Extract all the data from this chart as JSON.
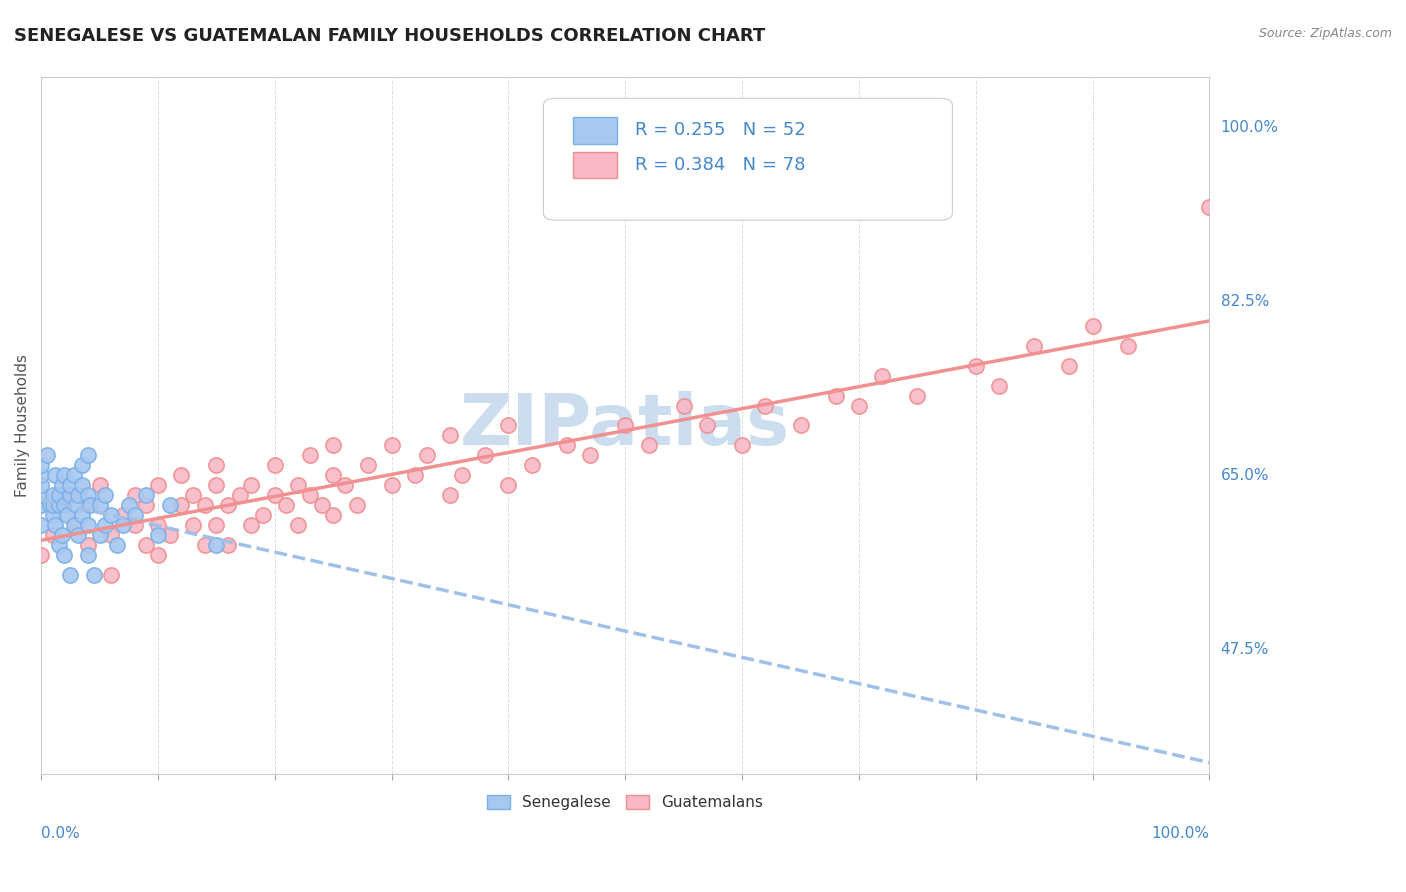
{
  "title": "SENEGALESE VS GUATEMALAN FAMILY HOUSEHOLDS CORRELATION CHART",
  "source": "Source: ZipAtlas.com",
  "ylabel": "Family Households",
  "right_yticks": [
    "47.5%",
    "65.0%",
    "82.5%",
    "100.0%"
  ],
  "right_ytick_vals": [
    0.475,
    0.65,
    0.825,
    1.0
  ],
  "senegalese_R": 0.255,
  "senegalese_N": 52,
  "guatemalan_R": 0.384,
  "guatemalan_N": 78,
  "senegalese_color": "#a8c8f0",
  "guatemalan_color": "#f8b8c8",
  "senegalese_edge_color": "#7ab0e8",
  "guatemalan_edge_color": "#f09090",
  "senegalese_line_color": "#a0c0e8",
  "guatemalan_line_color": "#f09090",
  "watermark_color": "#ccddf0",
  "senegalese_x": [
    0.0,
    0.0,
    0.0,
    0.0,
    0.0,
    0.0,
    0.005,
    0.008,
    0.01,
    0.01,
    0.01,
    0.012,
    0.012,
    0.015,
    0.015,
    0.015,
    0.018,
    0.018,
    0.02,
    0.02,
    0.02,
    0.022,
    0.025,
    0.025,
    0.025,
    0.028,
    0.028,
    0.03,
    0.032,
    0.032,
    0.035,
    0.035,
    0.035,
    0.04,
    0.04,
    0.04,
    0.04,
    0.042,
    0.045,
    0.05,
    0.05,
    0.055,
    0.055,
    0.06,
    0.065,
    0.07,
    0.075,
    0.08,
    0.09,
    0.1,
    0.11,
    0.15
  ],
  "senegalese_y": [
    0.6,
    0.62,
    0.63,
    0.64,
    0.65,
    0.66,
    0.67,
    0.62,
    0.61,
    0.62,
    0.63,
    0.6,
    0.65,
    0.58,
    0.62,
    0.63,
    0.59,
    0.64,
    0.57,
    0.62,
    0.65,
    0.61,
    0.55,
    0.63,
    0.64,
    0.6,
    0.65,
    0.62,
    0.59,
    0.63,
    0.61,
    0.64,
    0.66,
    0.57,
    0.6,
    0.63,
    0.67,
    0.62,
    0.55,
    0.59,
    0.62,
    0.6,
    0.63,
    0.61,
    0.58,
    0.6,
    0.62,
    0.61,
    0.63,
    0.59,
    0.62,
    0.58
  ],
  "guatemalan_x": [
    0.0,
    0.01,
    0.02,
    0.03,
    0.04,
    0.04,
    0.05,
    0.06,
    0.06,
    0.07,
    0.08,
    0.08,
    0.09,
    0.09,
    0.1,
    0.1,
    0.1,
    0.11,
    0.12,
    0.12,
    0.13,
    0.13,
    0.14,
    0.14,
    0.15,
    0.15,
    0.15,
    0.16,
    0.16,
    0.17,
    0.18,
    0.18,
    0.19,
    0.2,
    0.2,
    0.21,
    0.22,
    0.22,
    0.23,
    0.23,
    0.24,
    0.25,
    0.25,
    0.25,
    0.26,
    0.27,
    0.28,
    0.3,
    0.3,
    0.32,
    0.33,
    0.35,
    0.35,
    0.36,
    0.38,
    0.4,
    0.4,
    0.42,
    0.45,
    0.47,
    0.5,
    0.52,
    0.55,
    0.57,
    0.6,
    0.62,
    0.65,
    0.68,
    0.7,
    0.72,
    0.75,
    0.8,
    0.82,
    0.85,
    0.88,
    0.9,
    0.93,
    1.0
  ],
  "guatemalan_y": [
    0.57,
    0.59,
    0.63,
    0.6,
    0.62,
    0.58,
    0.64,
    0.55,
    0.59,
    0.61,
    0.6,
    0.63,
    0.58,
    0.62,
    0.57,
    0.6,
    0.64,
    0.59,
    0.62,
    0.65,
    0.6,
    0.63,
    0.58,
    0.62,
    0.6,
    0.64,
    0.66,
    0.58,
    0.62,
    0.63,
    0.6,
    0.64,
    0.61,
    0.63,
    0.66,
    0.62,
    0.64,
    0.6,
    0.63,
    0.67,
    0.62,
    0.61,
    0.65,
    0.68,
    0.64,
    0.62,
    0.66,
    0.64,
    0.68,
    0.65,
    0.67,
    0.63,
    0.69,
    0.65,
    0.67,
    0.64,
    0.7,
    0.66,
    0.68,
    0.67,
    0.7,
    0.68,
    0.72,
    0.7,
    0.68,
    0.72,
    0.7,
    0.73,
    0.72,
    0.75,
    0.73,
    0.76,
    0.74,
    0.78,
    0.76,
    0.8,
    0.78,
    0.92
  ],
  "xlim": [
    0.0,
    1.0
  ],
  "ylim": [
    0.35,
    1.05
  ]
}
